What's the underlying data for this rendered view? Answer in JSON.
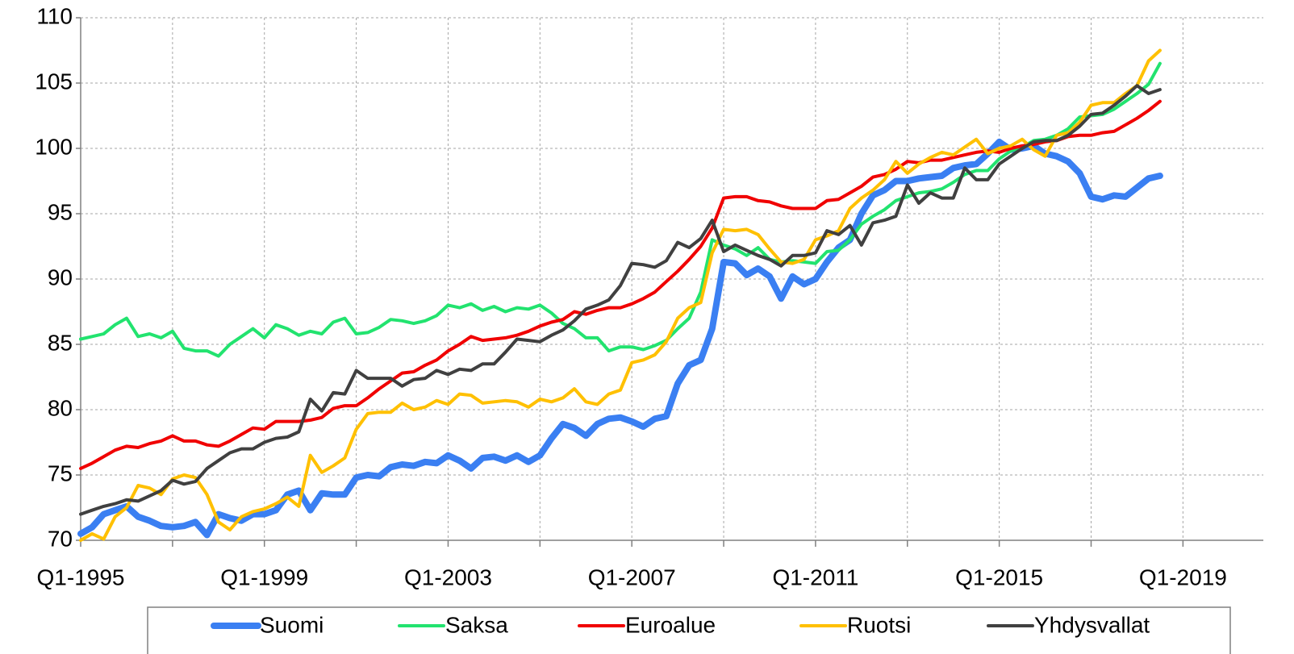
{
  "chart_data": {
    "type": "line",
    "categories": [
      "Q1-1995",
      null,
      null,
      null,
      null,
      null,
      null,
      null,
      null,
      null,
      null,
      null,
      null,
      null,
      null,
      null,
      "Q1-1999",
      null,
      null,
      null,
      null,
      null,
      null,
      null,
      null,
      null,
      null,
      null,
      null,
      null,
      null,
      null,
      "Q1-2003",
      null,
      null,
      null,
      null,
      null,
      null,
      null,
      null,
      null,
      null,
      null,
      null,
      null,
      null,
      null,
      "Q1-2007",
      null,
      null,
      null,
      null,
      null,
      null,
      null,
      null,
      null,
      null,
      null,
      null,
      null,
      null,
      null,
      "Q1-2011",
      null,
      null,
      null,
      null,
      null,
      null,
      null,
      null,
      null,
      null,
      null,
      null,
      null,
      null,
      null,
      "Q1-2015",
      null,
      null,
      null,
      null,
      null,
      null,
      null,
      null,
      null,
      null,
      null,
      null,
      null,
      null,
      null,
      "Q1-2019",
      null,
      null,
      null,
      null,
      null,
      null,
      null
    ],
    "series": [
      {
        "name": "Suomi",
        "color": "#3a7ff2",
        "values": [
          70.5,
          71.0,
          72.0,
          72.3,
          72.6,
          71.8,
          71.5,
          71.1,
          71.0,
          71.1,
          71.4,
          70.4,
          72.0,
          71.7,
          71.5,
          72.0,
          72.0,
          72.3,
          73.5,
          73.8,
          72.3,
          73.6,
          73.5,
          73.5,
          74.8,
          75.0,
          74.9,
          75.6,
          75.8,
          75.7,
          76.0,
          75.9,
          76.5,
          76.1,
          75.5,
          76.3,
          76.4,
          76.1,
          76.5,
          76.0,
          76.5,
          77.8,
          78.9,
          78.6,
          78.0,
          78.9,
          79.3,
          79.4,
          79.1,
          78.7,
          79.3,
          79.5,
          82.0,
          83.4,
          83.8,
          86.2,
          91.3,
          91.2,
          90.3,
          90.8,
          90.2,
          88.5,
          90.2,
          89.6,
          90.0,
          91.3,
          92.4,
          93.0,
          95.0,
          96.4,
          96.8,
          97.5,
          97.5,
          97.7,
          97.8,
          97.9,
          98.5,
          98.7,
          98.8,
          99.6,
          100.5,
          99.9,
          100.0,
          100.2,
          99.6,
          99.4,
          99.0,
          98.1,
          96.3,
          96.1,
          96.4,
          96.3,
          97.0,
          97.7,
          97.9,
          null,
          null,
          null,
          null,
          null,
          null,
          null,
          null,
          null
        ]
      },
      {
        "name": "Saksa",
        "color": "#22e36f",
        "values": [
          85.4,
          85.6,
          85.8,
          86.5,
          87.0,
          85.6,
          85.8,
          85.5,
          86.0,
          84.7,
          84.5,
          84.5,
          84.1,
          85.0,
          85.6,
          86.2,
          85.5,
          86.5,
          86.2,
          85.7,
          86.0,
          85.8,
          86.7,
          87.0,
          85.8,
          85.9,
          86.3,
          86.9,
          86.8,
          86.6,
          86.8,
          87.2,
          88.0,
          87.8,
          88.1,
          87.6,
          87.9,
          87.5,
          87.8,
          87.7,
          88.0,
          87.4,
          86.6,
          86.2,
          85.5,
          85.5,
          84.5,
          84.8,
          84.8,
          84.6,
          84.9,
          85.3,
          86.2,
          87.0,
          89.0,
          93.0,
          92.6,
          92.3,
          91.8,
          92.4,
          91.5,
          91.3,
          91.4,
          91.3,
          91.2,
          92.1,
          92.2,
          93.0,
          94.2,
          94.8,
          95.3,
          96.0,
          96.3,
          96.6,
          96.7,
          96.9,
          97.4,
          98.0,
          98.3,
          98.3,
          99.2,
          99.8,
          100.1,
          100.6,
          100.7,
          101.0,
          101.5,
          102.4,
          102.5,
          102.6,
          103.0,
          103.6,
          104.2,
          104.9,
          106.5,
          null,
          null,
          null,
          null,
          null,
          null,
          null,
          null,
          null
        ]
      },
      {
        "name": "Euroalue",
        "color": "#f00000",
        "values": [
          75.5,
          75.9,
          76.4,
          76.9,
          77.2,
          77.1,
          77.4,
          77.6,
          78.0,
          77.6,
          77.6,
          77.3,
          77.2,
          77.6,
          78.1,
          78.6,
          78.5,
          79.1,
          79.1,
          79.1,
          79.2,
          79.4,
          80.1,
          80.3,
          80.3,
          80.9,
          81.6,
          82.2,
          82.8,
          82.9,
          83.4,
          83.8,
          84.5,
          85.0,
          85.6,
          85.3,
          85.4,
          85.5,
          85.7,
          86.0,
          86.4,
          86.7,
          86.9,
          87.5,
          87.3,
          87.6,
          87.8,
          87.8,
          88.1,
          88.5,
          89.0,
          89.8,
          90.6,
          91.5,
          92.5,
          93.9,
          96.2,
          96.3,
          96.3,
          96.0,
          95.9,
          95.6,
          95.4,
          95.4,
          95.4,
          96.0,
          96.1,
          96.6,
          97.1,
          97.8,
          98.0,
          98.4,
          99.0,
          98.9,
          99.1,
          99.1,
          99.3,
          99.5,
          99.7,
          99.8,
          99.7,
          100.0,
          100.2,
          100.3,
          100.5,
          100.6,
          100.9,
          101.0,
          101.0,
          101.2,
          101.3,
          101.8,
          102.3,
          102.9,
          103.6,
          null,
          null,
          null,
          null,
          null,
          null,
          null,
          null,
          null
        ]
      },
      {
        "name": "Ruotsi",
        "color": "#ffc000",
        "values": [
          70.0,
          70.5,
          70.1,
          71.8,
          72.5,
          74.2,
          74.0,
          73.5,
          74.7,
          75.0,
          74.8,
          73.5,
          71.4,
          70.8,
          71.8,
          72.2,
          72.4,
          72.8,
          73.3,
          72.6,
          76.5,
          75.2,
          75.7,
          76.3,
          78.5,
          79.7,
          79.8,
          79.8,
          80.5,
          80.0,
          80.2,
          80.7,
          80.4,
          81.2,
          81.1,
          80.5,
          80.6,
          80.7,
          80.6,
          80.2,
          80.8,
          80.6,
          80.9,
          81.6,
          80.6,
          80.4,
          81.2,
          81.5,
          83.6,
          83.8,
          84.2,
          85.2,
          87.0,
          87.8,
          88.2,
          92.0,
          93.8,
          93.7,
          93.8,
          93.4,
          92.3,
          91.3,
          91.2,
          91.5,
          93.0,
          93.3,
          93.7,
          95.4,
          96.2,
          96.8,
          97.6,
          99.0,
          98.1,
          98.8,
          99.3,
          99.7,
          99.5,
          100.1,
          100.7,
          99.6,
          100.0,
          100.2,
          100.7,
          99.9,
          99.4,
          101.0,
          101.2,
          102.0,
          103.3,
          103.5,
          103.5,
          104.2,
          104.8,
          106.7,
          107.5,
          null,
          null,
          null,
          null,
          null,
          null,
          null,
          null,
          null
        ]
      },
      {
        "name": "Yhdysvallat",
        "color": "#404040",
        "values": [
          72.0,
          72.3,
          72.6,
          72.8,
          73.1,
          73.0,
          73.4,
          73.8,
          74.6,
          74.3,
          74.5,
          75.5,
          76.1,
          76.7,
          77.0,
          77.0,
          77.5,
          77.8,
          77.9,
          78.3,
          80.8,
          79.9,
          81.3,
          81.2,
          83.0,
          82.4,
          82.4,
          82.4,
          81.8,
          82.3,
          82.4,
          83.0,
          82.7,
          83.1,
          83.0,
          83.5,
          83.5,
          84.4,
          85.4,
          85.3,
          85.2,
          85.7,
          86.1,
          86.8,
          87.7,
          88.0,
          88.4,
          89.5,
          91.2,
          91.1,
          90.9,
          91.4,
          92.8,
          92.4,
          93.1,
          94.5,
          92.1,
          92.6,
          92.2,
          91.8,
          91.5,
          91.0,
          91.8,
          91.8,
          92.0,
          93.7,
          93.4,
          94.1,
          92.6,
          94.3,
          94.5,
          94.8,
          97.2,
          95.8,
          96.6,
          96.2,
          96.2,
          98.5,
          97.6,
          97.6,
          98.8,
          99.4,
          100.0,
          100.5,
          100.6,
          100.6,
          101.0,
          101.7,
          102.6,
          102.7,
          103.3,
          104.0,
          104.8,
          104.2,
          104.5,
          null,
          null,
          null,
          null,
          null,
          null,
          null,
          null,
          null
        ]
      }
    ],
    "ylim": [
      70,
      110
    ],
    "yticks": [
      70,
      75,
      80,
      85,
      90,
      95,
      100,
      105,
      110
    ],
    "grid": true,
    "legend": "bottom"
  }
}
